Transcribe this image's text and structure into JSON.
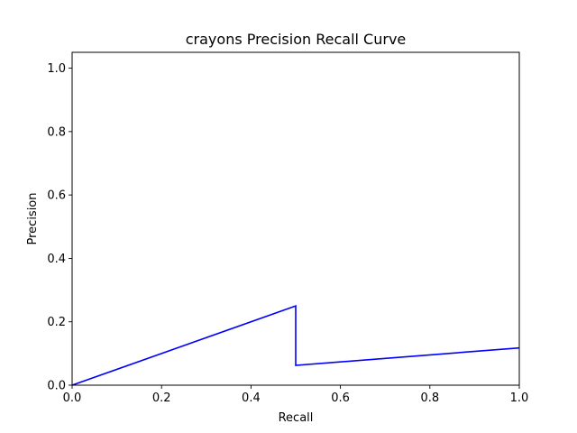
{
  "chart_data": {
    "type": "line",
    "title": "crayons Precision Recall Curve",
    "xlabel": "Recall",
    "ylabel": "Precision",
    "xlim": [
      0.0,
      1.0
    ],
    "ylim": [
      0.0,
      1.05
    ],
    "xticks": [
      0.0,
      0.2,
      0.4,
      0.6,
      0.8,
      1.0
    ],
    "yticks": [
      0.0,
      0.2,
      0.4,
      0.6,
      0.8,
      1.0
    ],
    "xtick_labels": [
      "0.0",
      "0.2",
      "0.4",
      "0.6",
      "0.8",
      "1.0"
    ],
    "ytick_labels": [
      "0.0",
      "0.2",
      "0.4",
      "0.6",
      "0.8",
      "1.0"
    ],
    "grid": false,
    "legend": "none",
    "series": [
      {
        "color": "#0000ff",
        "x": [
          0.0,
          0.5,
          0.5,
          1.0
        ],
        "y": [
          0.0,
          0.25,
          0.0625,
          0.1176
        ]
      }
    ]
  }
}
